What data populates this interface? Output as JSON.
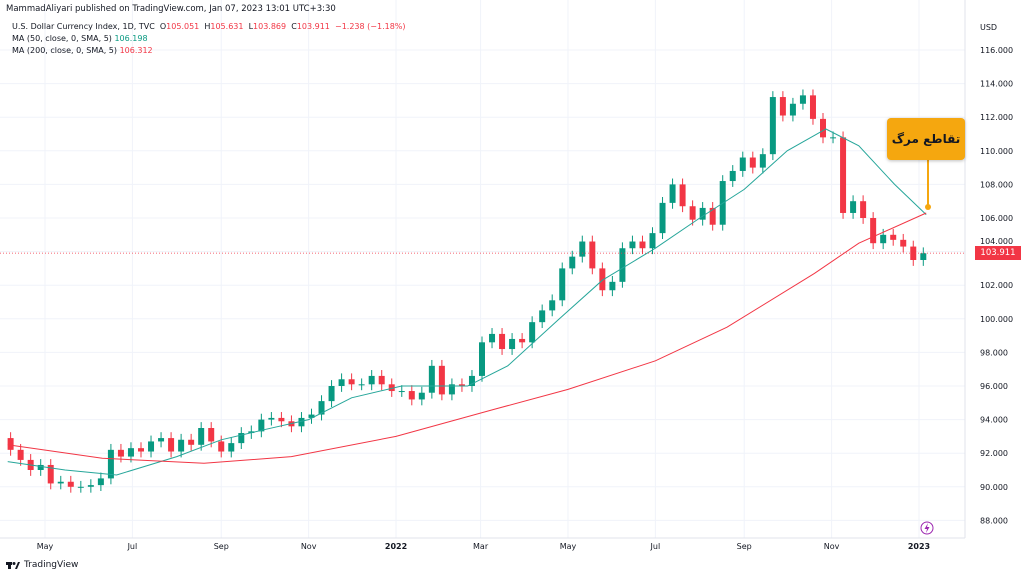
{
  "publisher_line": "MammadAliyari published on TradingView.com, Jan 07, 2023 13:01 UTC+3:30",
  "legend": {
    "symbol": "U.S. Dollar Currency Index, 1D, TVC",
    "open_label": "O",
    "open": "105.051",
    "high_label": "H",
    "high": "105.631",
    "low_label": "L",
    "low": "103.869",
    "close_label": "C",
    "close": "103.911",
    "change": "−1.238 (−1.18%)",
    "ma50_label": "MA (50, close, 0, SMA, 5)",
    "ma50_value": "106.198",
    "ma200_label": "MA (200, close, 0, SMA, 5)",
    "ma200_value": "106.312"
  },
  "annotation": {
    "text": "تقاطع مرگ",
    "color": "#f5a70f"
  },
  "footer": {
    "brand": "TradingView"
  },
  "colors": {
    "up": "#089981",
    "down": "#f23645",
    "ma50": "#26a69a",
    "ma200": "#f23645",
    "grid": "#f0f3fa"
  },
  "chart_data": {
    "type": "candlestick",
    "currency": "USD",
    "last_price": "103.911",
    "ylim": [
      87,
      116.5
    ],
    "y_ticks": [
      "116.000",
      "114.000",
      "112.000",
      "110.000",
      "108.000",
      "106.000",
      "104.000",
      "102.000",
      "100.000",
      "98.000",
      "96.000",
      "94.000",
      "92.000",
      "90.000",
      "88.000"
    ],
    "x_ticks": [
      {
        "label": "May",
        "date": "2021-05-01"
      },
      {
        "label": "Jul",
        "date": "2021-07-01"
      },
      {
        "label": "Sep",
        "date": "2021-09-01"
      },
      {
        "label": "Nov",
        "date": "2021-11-01"
      },
      {
        "label": "2022",
        "date": "2022-01-01"
      },
      {
        "label": "Mar",
        "date": "2022-03-01"
      },
      {
        "label": "May",
        "date": "2022-05-01"
      },
      {
        "label": "Jul",
        "date": "2022-07-01"
      },
      {
        "label": "Sep",
        "date": "2022-09-01"
      },
      {
        "label": "Nov",
        "date": "2022-11-01"
      },
      {
        "label": "2023",
        "date": "2023-01-01"
      }
    ],
    "weekly_close_start": "2021-04-05",
    "first_open": 92.9,
    "weekly_closes": [
      92.2,
      91.6,
      91.0,
      91.3,
      90.2,
      90.3,
      90.0,
      90.0,
      90.1,
      90.5,
      92.2,
      91.8,
      92.3,
      92.1,
      92.7,
      92.9,
      92.1,
      92.8,
      92.5,
      93.5,
      92.7,
      92.1,
      92.6,
      93.2,
      93.3,
      94.0,
      94.1,
      93.9,
      93.6,
      94.1,
      94.3,
      95.1,
      96.0,
      96.4,
      96.1,
      96.1,
      96.6,
      96.1,
      95.7,
      95.7,
      95.2,
      95.6,
      97.2,
      95.5,
      96.1,
      96.0,
      96.6,
      98.6,
      99.1,
      98.2,
      98.8,
      98.6,
      99.8,
      100.5,
      101.1,
      103.0,
      103.7,
      104.6,
      103.0,
      101.7,
      102.2,
      104.2,
      104.6,
      104.2,
      105.1,
      106.9,
      108.0,
      106.7,
      105.9,
      106.6,
      105.6,
      108.2,
      108.8,
      109.6,
      109.0,
      109.8,
      113.2,
      112.1,
      112.8,
      113.3,
      111.9,
      110.8,
      110.8,
      106.3,
      107.0,
      106.0,
      104.5,
      105.0,
      104.7,
      104.3,
      103.5,
      103.9
    ],
    "series": [
      {
        "name": "MA (50, close, 0, SMA, 5)",
        "points": [
          [
            "2021-04-05",
            91.5
          ],
          [
            "2021-05-15",
            91.0
          ],
          [
            "2021-06-20",
            90.7
          ],
          [
            "2021-08-01",
            91.8
          ],
          [
            "2021-09-01",
            92.8
          ],
          [
            "2021-10-01",
            93.4
          ],
          [
            "2021-11-01",
            94.0
          ],
          [
            "2021-12-01",
            95.3
          ],
          [
            "2022-01-05",
            96.0
          ],
          [
            "2022-02-20",
            96.0
          ],
          [
            "2022-03-20",
            97.2
          ],
          [
            "2022-04-25",
            100.0
          ],
          [
            "2022-05-25",
            102.3
          ],
          [
            "2022-07-01",
            104.2
          ],
          [
            "2022-08-01",
            106.0
          ],
          [
            "2022-09-01",
            107.7
          ],
          [
            "2022-10-01",
            110.0
          ],
          [
            "2022-10-28",
            111.3
          ],
          [
            "2022-11-20",
            110.3
          ],
          [
            "2022-12-15",
            108.0
          ],
          [
            "2023-01-06",
            106.2
          ]
        ]
      },
      {
        "name": "MA (200, close, 0, SMA, 5)",
        "points": [
          [
            "2021-04-05",
            92.5
          ],
          [
            "2021-06-10",
            91.7
          ],
          [
            "2021-08-20",
            91.4
          ],
          [
            "2021-10-20",
            91.8
          ],
          [
            "2022-01-01",
            93.0
          ],
          [
            "2022-03-10",
            94.6
          ],
          [
            "2022-05-01",
            95.8
          ],
          [
            "2022-07-01",
            97.5
          ],
          [
            "2022-08-20",
            99.5
          ],
          [
            "2022-10-20",
            102.7
          ],
          [
            "2022-11-20",
            104.5
          ],
          [
            "2023-01-06",
            106.3
          ]
        ]
      }
    ]
  }
}
